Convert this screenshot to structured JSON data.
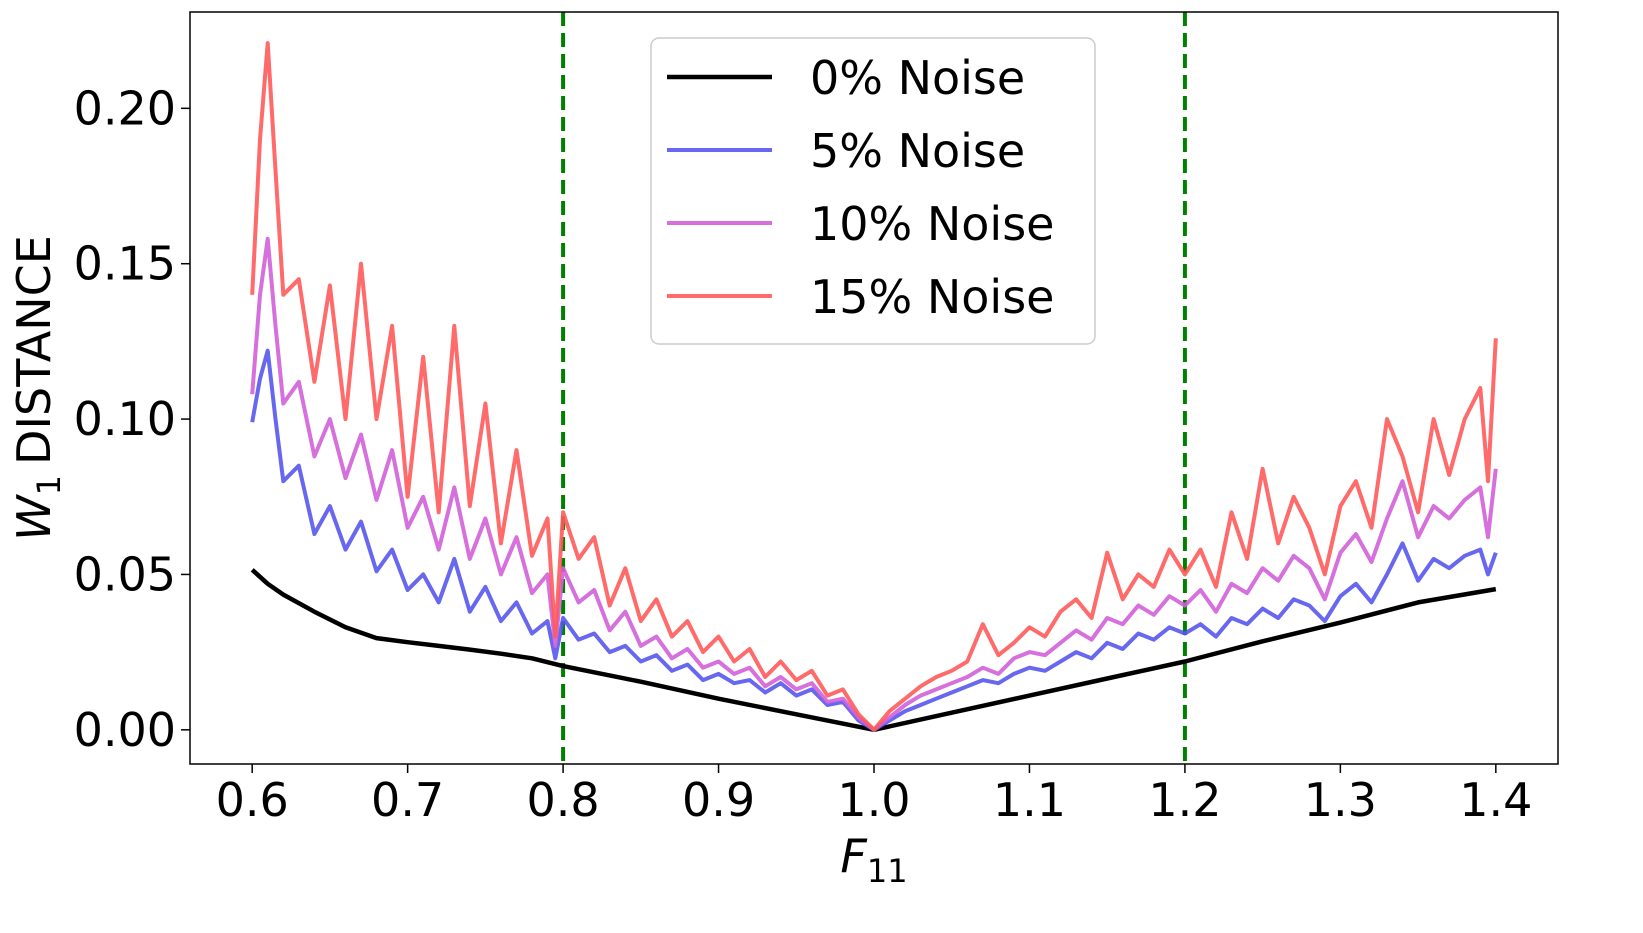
{
  "chart_data": {
    "type": "line",
    "xlabel": "F",
    "xlabel_sub": "11",
    "ylabel_var": "W",
    "ylabel_sub": "1",
    "ylabel_text": "DISTANCE",
    "xlim": [
      0.56,
      1.44
    ],
    "ylim": [
      -0.011,
      0.231
    ],
    "xticks": [
      0.6,
      0.7,
      0.8,
      0.9,
      1.0,
      1.1,
      1.2,
      1.3,
      1.4
    ],
    "xtick_labels": [
      "0.6",
      "0.7",
      "0.8",
      "0.9",
      "1.0",
      "1.1",
      "1.2",
      "1.3",
      "1.4"
    ],
    "yticks": [
      0.0,
      0.05,
      0.1,
      0.15,
      0.2
    ],
    "ytick_labels": [
      "0.00",
      "0.05",
      "0.10",
      "0.15",
      "0.20"
    ],
    "vlines": [
      0.8,
      1.2
    ],
    "vline_color": "#008000",
    "legend_position": "upper-center",
    "series": [
      {
        "name": "0% Noise",
        "color": "#000000",
        "x": [
          0.6,
          0.61,
          0.62,
          0.64,
          0.66,
          0.68,
          0.7,
          0.72,
          0.74,
          0.76,
          0.78,
          0.8,
          0.85,
          0.9,
          0.95,
          1.0,
          1.05,
          1.1,
          1.15,
          1.2,
          1.25,
          1.3,
          1.35,
          1.4
        ],
        "values": [
          0.0515,
          0.047,
          0.0435,
          0.038,
          0.033,
          0.0295,
          0.0282,
          0.027,
          0.0258,
          0.0245,
          0.023,
          0.0205,
          0.0155,
          0.01,
          0.005,
          0.0,
          0.0055,
          0.011,
          0.0165,
          0.022,
          0.0285,
          0.0345,
          0.041,
          0.0453
        ]
      },
      {
        "name": "5% Noise",
        "color": "#5656ee",
        "x": [
          0.6,
          0.605,
          0.61,
          0.615,
          0.62,
          0.63,
          0.64,
          0.65,
          0.66,
          0.67,
          0.68,
          0.69,
          0.7,
          0.71,
          0.72,
          0.73,
          0.74,
          0.75,
          0.76,
          0.77,
          0.78,
          0.79,
          0.795,
          0.8,
          0.81,
          0.82,
          0.83,
          0.84,
          0.85,
          0.86,
          0.87,
          0.88,
          0.89,
          0.9,
          0.91,
          0.92,
          0.93,
          0.94,
          0.95,
          0.96,
          0.97,
          0.98,
          0.99,
          1.0,
          1.01,
          1.02,
          1.03,
          1.04,
          1.05,
          1.06,
          1.07,
          1.08,
          1.09,
          1.1,
          1.11,
          1.12,
          1.13,
          1.14,
          1.15,
          1.16,
          1.17,
          1.18,
          1.19,
          1.2,
          1.21,
          1.22,
          1.23,
          1.24,
          1.25,
          1.26,
          1.27,
          1.28,
          1.29,
          1.3,
          1.31,
          1.32,
          1.33,
          1.34,
          1.35,
          1.36,
          1.37,
          1.38,
          1.39,
          1.395,
          1.4
        ],
        "values": [
          0.099,
          0.113,
          0.122,
          0.1,
          0.08,
          0.085,
          0.063,
          0.072,
          0.058,
          0.067,
          0.051,
          0.058,
          0.045,
          0.05,
          0.041,
          0.055,
          0.038,
          0.046,
          0.035,
          0.041,
          0.031,
          0.035,
          0.023,
          0.036,
          0.029,
          0.031,
          0.025,
          0.027,
          0.022,
          0.024,
          0.019,
          0.021,
          0.016,
          0.018,
          0.015,
          0.016,
          0.012,
          0.015,
          0.011,
          0.013,
          0.008,
          0.009,
          0.003,
          0.0,
          0.003,
          0.006,
          0.008,
          0.01,
          0.012,
          0.014,
          0.016,
          0.015,
          0.018,
          0.02,
          0.019,
          0.022,
          0.025,
          0.023,
          0.028,
          0.026,
          0.031,
          0.029,
          0.033,
          0.031,
          0.034,
          0.03,
          0.036,
          0.034,
          0.039,
          0.036,
          0.042,
          0.04,
          0.035,
          0.043,
          0.047,
          0.041,
          0.05,
          0.06,
          0.048,
          0.055,
          0.052,
          0.056,
          0.058,
          0.05,
          0.057
        ]
      },
      {
        "name": "10% Noise",
        "color": "#d060d8",
        "x": [
          0.6,
          0.605,
          0.61,
          0.615,
          0.62,
          0.63,
          0.64,
          0.65,
          0.66,
          0.67,
          0.68,
          0.69,
          0.7,
          0.71,
          0.72,
          0.73,
          0.74,
          0.75,
          0.76,
          0.77,
          0.78,
          0.79,
          0.795,
          0.8,
          0.81,
          0.82,
          0.83,
          0.84,
          0.85,
          0.86,
          0.87,
          0.88,
          0.89,
          0.9,
          0.91,
          0.92,
          0.93,
          0.94,
          0.95,
          0.96,
          0.97,
          0.98,
          0.99,
          1.0,
          1.01,
          1.02,
          1.03,
          1.04,
          1.05,
          1.06,
          1.07,
          1.08,
          1.09,
          1.1,
          1.11,
          1.12,
          1.13,
          1.14,
          1.15,
          1.16,
          1.17,
          1.18,
          1.19,
          1.2,
          1.21,
          1.22,
          1.23,
          1.24,
          1.25,
          1.26,
          1.27,
          1.28,
          1.29,
          1.3,
          1.31,
          1.32,
          1.33,
          1.34,
          1.35,
          1.36,
          1.37,
          1.38,
          1.39,
          1.395,
          1.4
        ],
        "values": [
          0.108,
          0.14,
          0.158,
          0.13,
          0.105,
          0.112,
          0.088,
          0.1,
          0.081,
          0.095,
          0.074,
          0.09,
          0.065,
          0.075,
          0.058,
          0.078,
          0.055,
          0.068,
          0.05,
          0.062,
          0.044,
          0.05,
          0.027,
          0.052,
          0.041,
          0.045,
          0.032,
          0.038,
          0.027,
          0.03,
          0.023,
          0.026,
          0.02,
          0.022,
          0.018,
          0.02,
          0.014,
          0.017,
          0.013,
          0.015,
          0.009,
          0.01,
          0.004,
          0.0,
          0.004,
          0.008,
          0.011,
          0.013,
          0.015,
          0.017,
          0.02,
          0.018,
          0.023,
          0.025,
          0.024,
          0.028,
          0.032,
          0.029,
          0.036,
          0.034,
          0.04,
          0.037,
          0.043,
          0.04,
          0.045,
          0.038,
          0.047,
          0.044,
          0.052,
          0.048,
          0.056,
          0.052,
          0.042,
          0.057,
          0.063,
          0.054,
          0.068,
          0.08,
          0.062,
          0.072,
          0.068,
          0.074,
          0.078,
          0.062,
          0.084
        ]
      },
      {
        "name": "15% Noise",
        "color": "#ff5a5a",
        "x": [
          0.6,
          0.605,
          0.61,
          0.615,
          0.62,
          0.63,
          0.64,
          0.65,
          0.66,
          0.67,
          0.68,
          0.69,
          0.7,
          0.71,
          0.72,
          0.73,
          0.74,
          0.75,
          0.76,
          0.77,
          0.78,
          0.79,
          0.795,
          0.8,
          0.81,
          0.82,
          0.83,
          0.84,
          0.85,
          0.86,
          0.87,
          0.88,
          0.89,
          0.9,
          0.91,
          0.92,
          0.93,
          0.94,
          0.95,
          0.96,
          0.97,
          0.98,
          0.99,
          1.0,
          1.01,
          1.02,
          1.03,
          1.04,
          1.05,
          1.06,
          1.07,
          1.08,
          1.09,
          1.1,
          1.11,
          1.12,
          1.13,
          1.14,
          1.15,
          1.16,
          1.17,
          1.18,
          1.19,
          1.2,
          1.21,
          1.22,
          1.23,
          1.24,
          1.25,
          1.26,
          1.27,
          1.28,
          1.29,
          1.3,
          1.31,
          1.32,
          1.33,
          1.34,
          1.35,
          1.36,
          1.37,
          1.38,
          1.39,
          1.395,
          1.4
        ],
        "values": [
          0.14,
          0.19,
          0.221,
          0.18,
          0.14,
          0.145,
          0.112,
          0.143,
          0.1,
          0.15,
          0.1,
          0.13,
          0.075,
          0.12,
          0.07,
          0.13,
          0.072,
          0.105,
          0.06,
          0.09,
          0.056,
          0.068,
          0.03,
          0.07,
          0.055,
          0.062,
          0.04,
          0.052,
          0.035,
          0.042,
          0.03,
          0.035,
          0.025,
          0.03,
          0.022,
          0.026,
          0.017,
          0.022,
          0.016,
          0.019,
          0.011,
          0.013,
          0.005,
          0.0,
          0.006,
          0.01,
          0.014,
          0.017,
          0.019,
          0.022,
          0.034,
          0.024,
          0.028,
          0.033,
          0.03,
          0.038,
          0.042,
          0.036,
          0.057,
          0.042,
          0.05,
          0.046,
          0.058,
          0.05,
          0.058,
          0.046,
          0.07,
          0.055,
          0.084,
          0.06,
          0.075,
          0.065,
          0.05,
          0.072,
          0.08,
          0.065,
          0.1,
          0.088,
          0.07,
          0.1,
          0.082,
          0.1,
          0.11,
          0.08,
          0.126
        ]
      }
    ]
  }
}
